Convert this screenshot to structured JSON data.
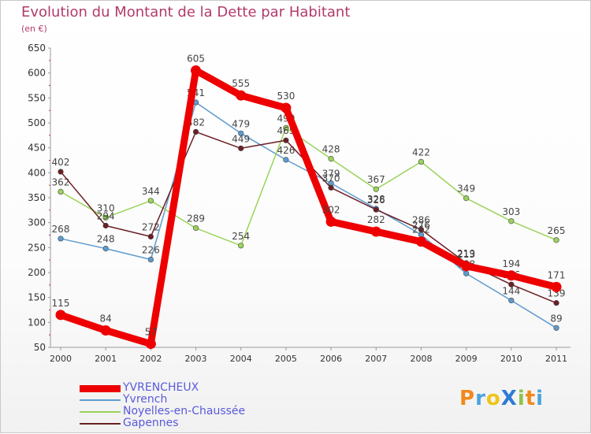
{
  "header": {
    "title": "Evolution du Montant de la Dette par Habitant",
    "subtitle": "(en €)"
  },
  "logo": {
    "text": "ProXiti",
    "letters": [
      {
        "ch": "P",
        "color": "#f08a1c"
      },
      {
        "ch": "r",
        "color": "#4aa3df"
      },
      {
        "ch": "o",
        "color": "#f0c419"
      },
      {
        "ch": "X",
        "color": "#2e7bd6"
      },
      {
        "ch": "i",
        "color": "#8bc34a"
      },
      {
        "ch": "t",
        "color": "#f08a1c"
      },
      {
        "ch": "i",
        "color": "#4aa3df"
      }
    ]
  },
  "chart_data": {
    "type": "line",
    "title": "Evolution du Montant de la Dette par Habitant",
    "ylabel": "(en €)",
    "x": [
      "2000",
      "2001",
      "2002",
      "2003",
      "2004",
      "2005",
      "2006",
      "2007",
      "2008",
      "2009",
      "2010",
      "2011"
    ],
    "ylim": [
      50,
      650
    ],
    "yticks": [
      50,
      100,
      150,
      200,
      250,
      300,
      350,
      400,
      450,
      500,
      550,
      600,
      650
    ],
    "grid": false,
    "legend_position": "bottom-left",
    "series": [
      {
        "name": "YVRENCHEUX",
        "color": "#ee0000",
        "values": [
          115,
          84,
          57,
          605,
          555,
          530,
          302,
          282,
          262,
          213,
          194,
          171
        ]
      },
      {
        "name": "Yvrench",
        "color": "#5e9bd0",
        "values": [
          268,
          248,
          226,
          541,
          479,
          426,
          379,
          328,
          276,
          198,
          144,
          89
        ]
      },
      {
        "name": "Noyelles-en-Chaussée",
        "color": "#9ad35a",
        "values": [
          362,
          310,
          344,
          289,
          254,
          490,
          428,
          367,
          422,
          349,
          303,
          265
        ]
      },
      {
        "name": "Gapennes",
        "color": "#6b1f25",
        "values": [
          402,
          294,
          272,
          482,
          449,
          465,
          370,
          326,
          286,
          219,
          176,
          139
        ]
      }
    ]
  }
}
